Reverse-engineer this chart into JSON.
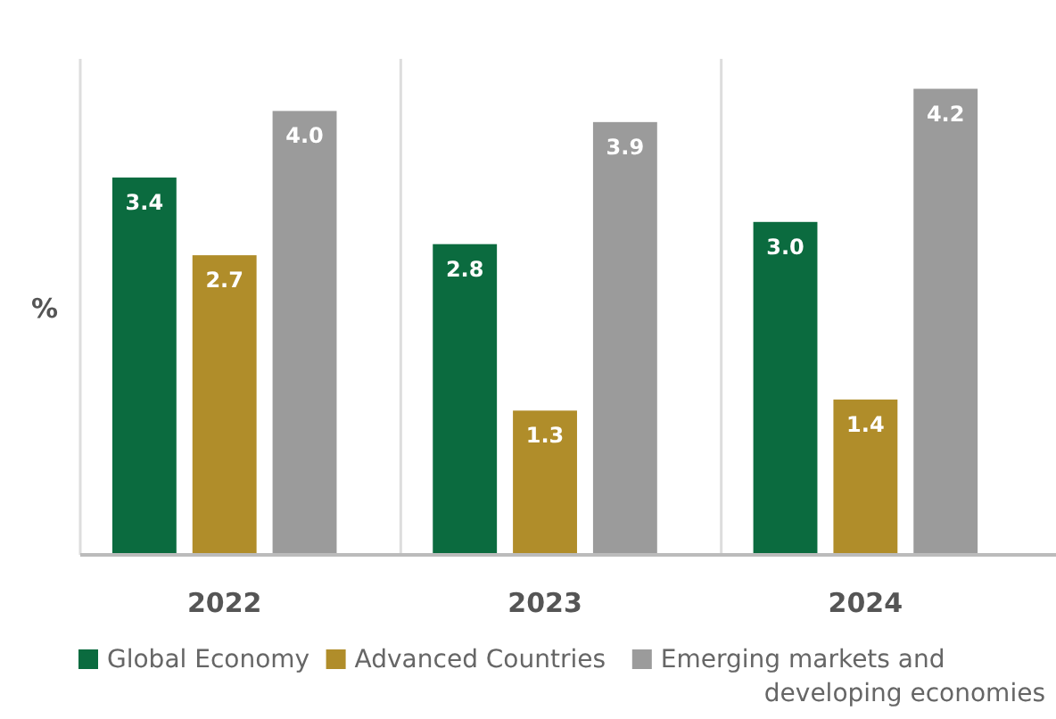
{
  "chart_data": {
    "type": "bar",
    "ylabel": "%",
    "categories": [
      "2022",
      "2023",
      "2024"
    ],
    "series": [
      {
        "name": "Global Economy",
        "color": "#0b6b3f",
        "values": [
          3.4,
          2.8,
          3.0
        ],
        "value_labels": [
          "3.4",
          "2.8",
          "3.0"
        ]
      },
      {
        "name": "Advanced Countries",
        "color": "#b08d2a",
        "values": [
          2.7,
          1.3,
          1.4
        ],
        "value_labels": [
          "2.7",
          "1.3",
          "1.4"
        ]
      },
      {
        "name": "Emerging markets and developing economies",
        "color": "#9b9b9b",
        "values": [
          4.0,
          3.9,
          4.2
        ],
        "value_labels": [
          "4.0",
          "3.9",
          "4.2"
        ]
      }
    ],
    "legend": "bottom",
    "ref_lines": [
      {
        "axis": "x",
        "value": "2023",
        "color": "#dddddd"
      },
      {
        "axis": "x",
        "value": "2024",
        "color": "#dddddd"
      }
    ]
  }
}
